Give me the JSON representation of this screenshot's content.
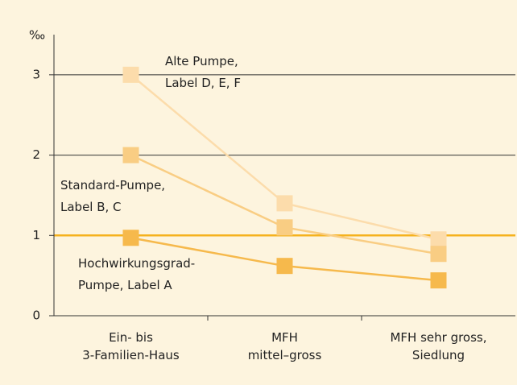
{
  "chart_data": {
    "type": "line",
    "y_label": "‰",
    "categories": [
      [
        "Ein- bis",
        "3-Familien-Haus"
      ],
      [
        "MFH",
        "mittel–gross"
      ],
      [
        "MFH sehr gross,",
        "Siedlung"
      ]
    ],
    "series": [
      {
        "name": [
          "Alte Pumpe,",
          "Label D, E, F"
        ],
        "color": "#fcdcab",
        "values": [
          3.0,
          1.4,
          0.95
        ]
      },
      {
        "name": [
          "Standard-Pumpe,",
          "Label B, C"
        ],
        "color": "#f9cd83",
        "values": [
          2.0,
          1.1,
          0.77
        ]
      },
      {
        "name": [
          "Hochwirkungsgrad-",
          "Pumpe, Label A"
        ],
        "color": "#f6b94c",
        "values": [
          0.97,
          0.62,
          0.44
        ]
      }
    ],
    "reference_line": {
      "value": 1,
      "color": "#f5b21e"
    },
    "ylim": [
      0,
      3.5
    ],
    "yticks": [
      0,
      1,
      2,
      3
    ],
    "grid": true
  }
}
